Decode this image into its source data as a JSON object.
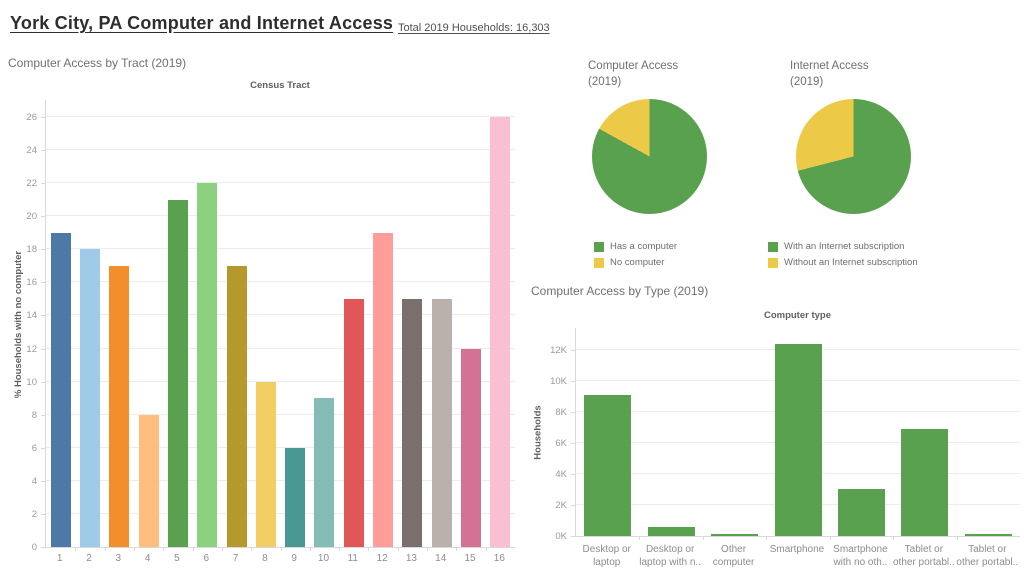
{
  "header": {
    "title": "York City, PA Computer and Internet Access",
    "subtitle": "Total 2019 Households: 16,303"
  },
  "colors": {
    "green": "#59A14F",
    "yellow": "#EDC948",
    "gridline": "#ececec",
    "axis_line": "#d9d9d9"
  },
  "chart_data": [
    {
      "type": "bar",
      "title": "Computer Access by Tract (2019)",
      "column_header": "Census Tract",
      "ylabel": "% Households with no computer",
      "categories": [
        "1",
        "2",
        "3",
        "4",
        "5",
        "6",
        "7",
        "8",
        "9",
        "10",
        "11",
        "12",
        "13",
        "14",
        "15",
        "16"
      ],
      "values": [
        19,
        18,
        17,
        8,
        21,
        22,
        17,
        10,
        6,
        9,
        15,
        19,
        15,
        15,
        12,
        26
      ],
      "bar_colors": [
        "#4E79A7",
        "#A0CBE8",
        "#F28E2B",
        "#FFBE7D",
        "#59A14F",
        "#8CD17D",
        "#B6992D",
        "#F1CE63",
        "#499894",
        "#86BCB6",
        "#E15759",
        "#FF9D9A",
        "#79706E",
        "#BAB0AC",
        "#D37295",
        "#FABFD2"
      ],
      "ylim": [
        0,
        26
      ],
      "ytick_step": 2,
      "ytick_suffix": "",
      "ytick_divisor": 1,
      "grid": true
    },
    {
      "type": "pie",
      "title": "Computer Access (2019)",
      "slices": [
        {
          "label": "Has a computer",
          "percent": 83,
          "color": "#59A14F"
        },
        {
          "label": "No computer",
          "percent": 17,
          "color": "#EDC948"
        }
      ],
      "legend_position": "bottom"
    },
    {
      "type": "pie",
      "title": "Internet Access (2019)",
      "slices": [
        {
          "label": "With an Internet subscription",
          "percent": 71,
          "color": "#59A14F"
        },
        {
          "label": "Without an Internet subscription",
          "percent": 29,
          "color": "#EDC948"
        }
      ],
      "legend_position": "bottom"
    },
    {
      "type": "bar",
      "title": "Computer Access by Type (2019)",
      "column_header": "Computer type",
      "ylabel": "Households",
      "categories": [
        [
          "Desktop or",
          "laptop"
        ],
        [
          "Desktop or",
          "laptop with n.."
        ],
        [
          "Other",
          "computer"
        ],
        [
          "Smartphone"
        ],
        [
          "Smartphone",
          "with no oth.."
        ],
        [
          "Tablet or",
          "other portabl.."
        ],
        [
          "Tablet or",
          "other portabl.."
        ]
      ],
      "values": [
        9100,
        600,
        150,
        12350,
        3000,
        6900,
        100
      ],
      "bar_color": "#59A14F",
      "ylim": [
        0,
        13000
      ],
      "ytick_step": 2000,
      "ytick_suffix": "K",
      "ytick_divisor": 1000,
      "grid": true
    }
  ]
}
